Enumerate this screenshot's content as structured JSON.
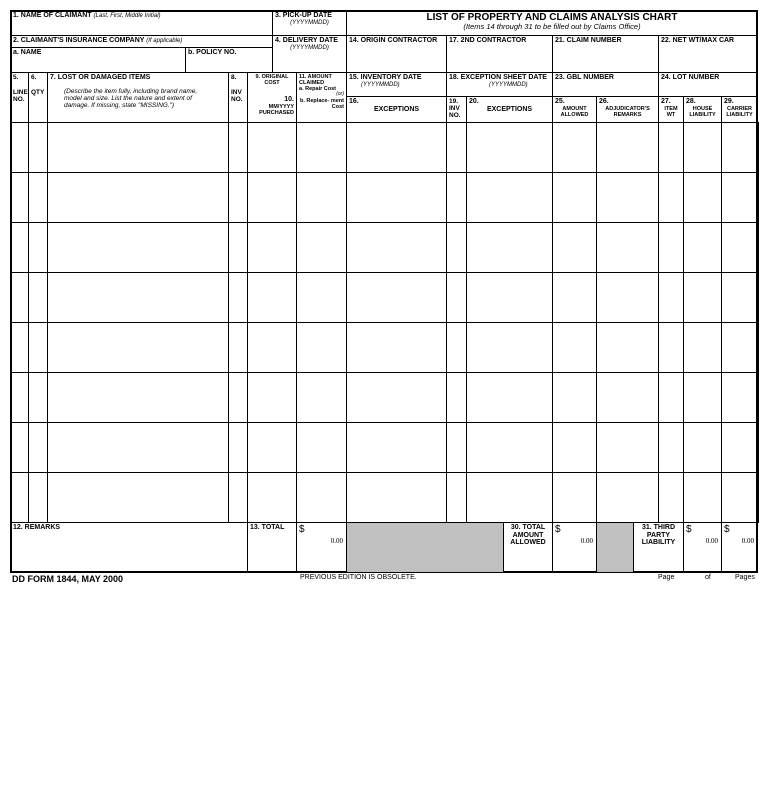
{
  "header": {
    "title": "LIST OF PROPERTY AND CLAIMS ANALYSIS CHART",
    "subtitle": "(Items 14 through 31 to be filled out by Claims Office)",
    "f1": "1.  NAME OF CLAIMANT",
    "f1_hint": "(Last, First, Middle Initial)",
    "f2": "2.  CLAIMANT'S INSURANCE COMPANY",
    "f2_hint": "(If applicable)",
    "f2a": "a.  NAME",
    "f2b": "b.  POLICY NO.",
    "f3": "3.  PICK-UP DATE",
    "f4": "4.  DELIVERY DATE",
    "date_fmt": "(YYYYMMDD)",
    "f14": "14. ORIGIN CONTRACTOR",
    "f17": "17.  2ND CONTRACTOR",
    "f21": "21.  CLAIM NUMBER",
    "f22": "22.  NET WT/MAX CAR",
    "f15": "15. INVENTORY DATE",
    "f18": "18.  EXCEPTION SHEET DATE",
    "f23": "23.  GBL NUMBER",
    "f24": "24.  LOT NUMBER"
  },
  "columns": {
    "c5": "5.",
    "c5b": "LINE NO.",
    "c6": "6.",
    "c6b": "QTY",
    "c7": "7.  LOST OR DAMAGED ITEMS",
    "c7_hint": "(Describe the item fully, including brand name, model and size.  List the nature and extent of damage.  If missing, state \"MISSING.\")",
    "c8": "8.",
    "c8b": "INV NO.",
    "c9": "9. ORIGINAL COST",
    "c10": "10.",
    "c10b": "MM/YYYY PURCHASED",
    "c11": "11.  AMOUNT CLAIMED",
    "c11a": "a. Repair Cost",
    "c11or": "(or)",
    "c11b": "b. Replace- ment Cost",
    "c16": "16.",
    "c16b": "EXCEPTIONS",
    "c19": "19. INV NO.",
    "c20": "20.",
    "c20b": "EXCEPTIONS",
    "c25": "25.",
    "c25b": "AMOUNT ALLOWED",
    "c26": "26.",
    "c26b": "ADJUDICATOR'S REMARKS",
    "c27": "27.",
    "c27b": "ITEM WT",
    "c28": "28.",
    "c28b": "HOUSE LIABILITY",
    "c29": "29.",
    "c29b": "CARRIER LIABILITY"
  },
  "totals": {
    "f12": "12.  REMARKS",
    "f13": "13.  TOTAL",
    "currency": "$",
    "total13": "0.00",
    "f30": "30. TOTAL AMOUNT ALLOWED",
    "total30": "0.00",
    "f31": "31. THIRD PARTY LIABILITY",
    "total31a": "0.00",
    "total31b": "0.00"
  },
  "footer": {
    "form": "DD FORM 1844, MAY 2000",
    "obsolete": "PREVIOUS EDITION IS OBSOLETE.",
    "page": "Page",
    "of": "of",
    "pages": "Pages"
  },
  "row_count": 8
}
